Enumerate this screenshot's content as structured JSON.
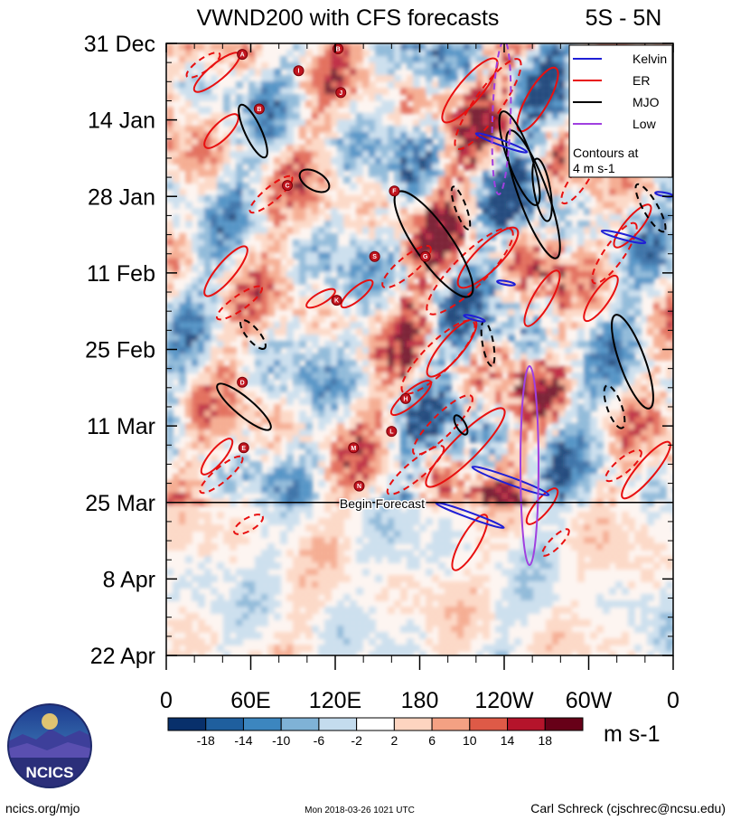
{
  "chart_data": {
    "type": "heatmap",
    "title": "VWND200 with CFS forecasts",
    "region_label": "5S - 5N",
    "y_ticks": [
      "31 Dec",
      "14 Jan",
      "28 Jan",
      "11 Feb",
      "25 Feb",
      "11 Mar",
      "25 Mar",
      "8 Apr",
      "22 Apr"
    ],
    "x_ticks": [
      "0",
      "60E",
      "120E",
      "180",
      "120W",
      "60W",
      "0"
    ],
    "x_range_lon": [
      0,
      360
    ],
    "y_range_days": [
      0,
      112
    ],
    "forecast_start_day": 84,
    "forecast_label": "Begin Forecast",
    "colorbar": {
      "labels": [
        "-18",
        "-14",
        "-10",
        "-6",
        "-2",
        "2",
        "6",
        "10",
        "14",
        "18"
      ],
      "colors": [
        "#08306b",
        "#1f5f9e",
        "#3c86bf",
        "#7fb2d6",
        "#c4dcee",
        "#ffffff",
        "#fdd4c0",
        "#f4a183",
        "#de5a47",
        "#b5142b",
        "#670018"
      ],
      "unit": "m s-1"
    },
    "legend": {
      "items": [
        {
          "label": "Kelvin",
          "color": "#1f1fd6"
        },
        {
          "label": "ER",
          "color": "#e81010"
        },
        {
          "label": "MJO",
          "color": "#000000"
        },
        {
          "label": "Low",
          "color": "#a040e0"
        }
      ],
      "note_line1": "Contours at",
      "note_line2": "4 m s-1",
      "placement": "top-right"
    },
    "storm_markers": [
      {
        "letter": "A",
        "lon": 54,
        "day": 2
      },
      {
        "letter": "B",
        "lon": 122,
        "day": 1
      },
      {
        "letter": "I",
        "lon": 94,
        "day": 5
      },
      {
        "letter": "J",
        "lon": 124,
        "day": 9
      },
      {
        "letter": "B",
        "lon": 66,
        "day": 12
      },
      {
        "letter": "C",
        "lon": 86,
        "day": 26
      },
      {
        "letter": "F",
        "lon": 162,
        "day": 27
      },
      {
        "letter": "S",
        "lon": 148,
        "day": 39
      },
      {
        "letter": "G",
        "lon": 184,
        "day": 39
      },
      {
        "letter": "K",
        "lon": 121,
        "day": 47
      },
      {
        "letter": "D",
        "lon": 54,
        "day": 62
      },
      {
        "letter": "H",
        "lon": 170,
        "day": 65
      },
      {
        "letter": "L",
        "lon": 160,
        "day": 71
      },
      {
        "letter": "E",
        "lon": 55,
        "day": 74
      },
      {
        "letter": "M",
        "lon": 133,
        "day": 74
      },
      {
        "letter": "N",
        "lon": 137,
        "day": 81
      }
    ]
  },
  "branding": {
    "logo_text": "NCICS",
    "url": "ncics.org/mjo"
  },
  "footer": {
    "timestamp": "Mon 2018-03-26 1021 UTC",
    "credit": "Carl Schreck (cjschrec@ncsu.edu)"
  }
}
